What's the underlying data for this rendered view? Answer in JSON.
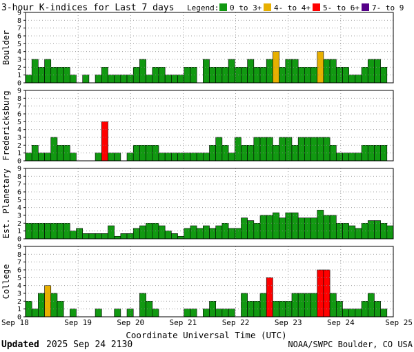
{
  "header": {
    "title": "3-hour K-indices for Last 7 days",
    "legend_label": "Legend:",
    "legend": [
      {
        "label": "0 to 3+",
        "color": "#119911"
      },
      {
        "label": "4- to 4+",
        "color": "#e8b000"
      },
      {
        "label": "5- to 6+",
        "color": "#ff0000"
      },
      {
        "label": "7- to 9",
        "color": "#550088"
      }
    ]
  },
  "footer": {
    "updated_label": "Updated",
    "updated_value": "2025 Sep 24 2130",
    "credit": "NOAA/SWPC Boulder, CO USA"
  },
  "chart_data": {
    "type": "bar",
    "xlabel": "Coordinate Universal Time (UTC)",
    "x_ticks": [
      "Sep 18",
      "Sep 19",
      "Sep 20",
      "Sep 21",
      "Sep 22",
      "Sep 23",
      "Sep 24",
      "Sep 25"
    ],
    "ylim": [
      0,
      9
    ],
    "y_ticks": [
      0,
      1,
      2,
      3,
      4,
      5,
      6,
      7,
      8,
      9
    ],
    "grid": true,
    "color_thresholds": [
      {
        "max": 3.99,
        "color": "#119911"
      },
      {
        "max": 4.99,
        "color": "#e8b000"
      },
      {
        "max": 6.99,
        "color": "#ff0000"
      },
      {
        "max": 9,
        "color": "#550088"
      }
    ],
    "series": [
      {
        "name": "Boulder",
        "values": [
          1,
          3,
          2,
          3,
          2,
          2,
          2,
          1,
          0,
          1,
          0,
          1,
          2,
          1,
          1,
          1,
          1,
          2,
          3,
          1,
          2,
          2,
          1,
          1,
          1,
          2,
          2,
          0,
          3,
          2,
          2,
          2,
          3,
          2,
          2,
          3,
          2,
          2,
          3,
          4,
          2,
          3,
          3,
          2,
          2,
          2,
          4,
          3,
          3,
          2,
          2,
          1,
          1,
          2,
          3,
          3,
          2,
          0
        ]
      },
      {
        "name": "Fredericksburg",
        "values": [
          1,
          2,
          1,
          1,
          3,
          2,
          2,
          1,
          0,
          0,
          0,
          1,
          5,
          1,
          1,
          0,
          1,
          2,
          2,
          2,
          2,
          1,
          1,
          1,
          1,
          1,
          1,
          1,
          1,
          2,
          3,
          2,
          1,
          3,
          2,
          2,
          3,
          3,
          3,
          2,
          3,
          3,
          2,
          3,
          3,
          3,
          3,
          3,
          2,
          1,
          1,
          1,
          1,
          2,
          2,
          2,
          2,
          0
        ]
      },
      {
        "name": "Est. Planetary",
        "values": [
          2,
          2,
          2,
          2,
          2,
          2,
          2,
          1,
          1.33,
          0.67,
          0.67,
          0.67,
          0.67,
          1.67,
          0.33,
          0.67,
          0.67,
          1.33,
          1.67,
          2,
          2,
          1.67,
          1,
          0.67,
          0.33,
          1.33,
          1.67,
          1.33,
          1.67,
          1.33,
          1.67,
          2,
          1.33,
          1.33,
          2.67,
          2.33,
          2,
          3,
          3,
          3.33,
          2.67,
          3.33,
          3.33,
          2.67,
          2.67,
          2.67,
          3.67,
          3,
          3,
          2,
          2,
          1.67,
          1.33,
          2,
          2.33,
          2.33,
          2,
          1.67
        ]
      },
      {
        "name": "College",
        "values": [
          2,
          1,
          3,
          4,
          3,
          2,
          0,
          1,
          0,
          0,
          0,
          1,
          0,
          0,
          1,
          0,
          1,
          0,
          3,
          2,
          1,
          0,
          0,
          0,
          0,
          1,
          1,
          0,
          1,
          2,
          1,
          1,
          1,
          0,
          3,
          2,
          2,
          3,
          5,
          2,
          2,
          2,
          3,
          3,
          3,
          3,
          6,
          6,
          3,
          2,
          1,
          1,
          1,
          2,
          3,
          2,
          1,
          0
        ]
      }
    ]
  }
}
